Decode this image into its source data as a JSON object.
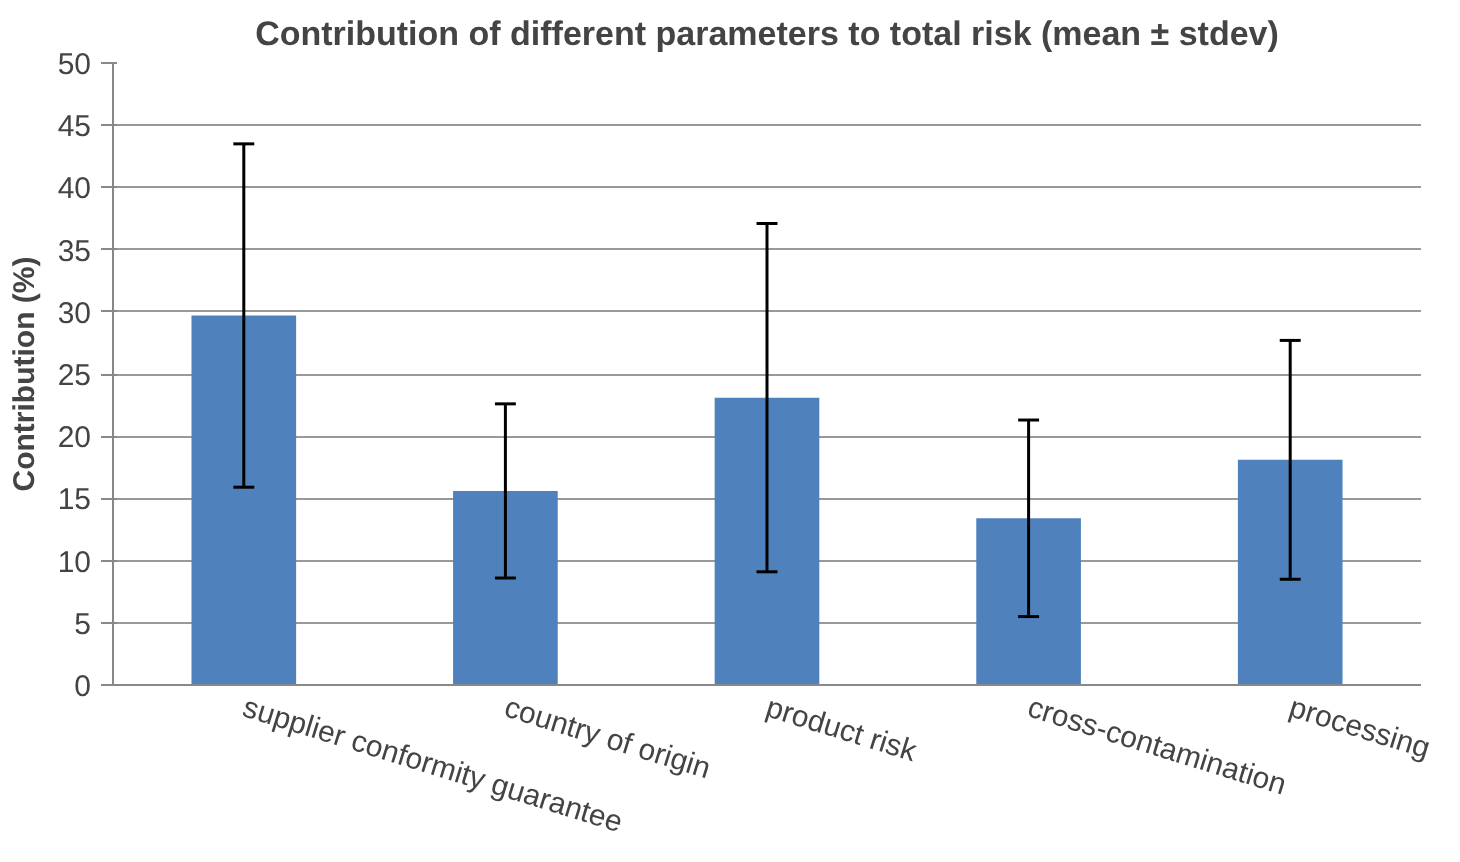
{
  "chart_data": {
    "type": "bar",
    "title": "Contribution of different parameters to total risk (mean ± stdev)",
    "ylabel": "Contribution (%)",
    "categories": [
      "supplier conformity guarantee",
      "country of origin",
      "product risk",
      "cross-contamination",
      "processing"
    ],
    "values": [
      29.7,
      15.6,
      23.1,
      13.4,
      18.1
    ],
    "errors": [
      13.8,
      7.0,
      14.0,
      7.9,
      9.6
    ],
    "color": "#4f81bd",
    "ylim": [
      0,
      50
    ],
    "yticks": [
      0,
      5,
      10,
      15,
      20,
      25,
      30,
      35,
      40,
      45,
      50
    ],
    "grid": "y"
  }
}
